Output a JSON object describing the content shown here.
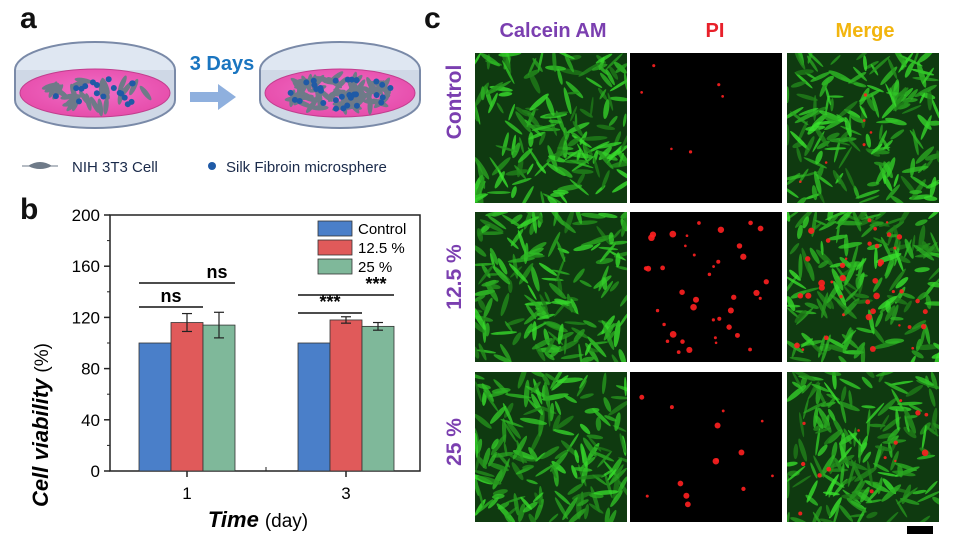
{
  "panel_labels": {
    "a": "a",
    "b": "b",
    "c": "c"
  },
  "panel_a": {
    "arrow_label": "3 Days",
    "legend_cell": "NIH 3T3 Cell",
    "legend_sphere": "Silk Fibroin microsphere"
  },
  "panel_c": {
    "columns": [
      "Calcein AM",
      "PI",
      "Merge"
    ],
    "rows": [
      "Control",
      "12.5 %",
      "25 %"
    ],
    "colors": {
      "calcein": "#7b3fb0",
      "pi": "#e8202a",
      "merge": "#f2b50f",
      "rows": "#7b3fb0"
    }
  },
  "chart_data": {
    "type": "bar",
    "categories": [
      "1",
      "3"
    ],
    "series": [
      {
        "name": "Control",
        "values": [
          100,
          100
        ],
        "errors": [
          0,
          0
        ],
        "color": "#4a7fc9"
      },
      {
        "name": "12.5 %",
        "values": [
          116,
          118
        ],
        "errors": [
          7,
          2.5
        ],
        "color": "#e05a5a"
      },
      {
        "name": "25 %",
        "values": [
          114,
          113
        ],
        "errors": [
          10,
          3
        ],
        "color": "#7fb89a"
      }
    ],
    "xlabel": {
      "bold": "Time",
      "unit": "(day)"
    },
    "ylabel": {
      "bold": "Cell viability",
      "unit": "(%)"
    },
    "ylim": [
      0,
      200
    ],
    "yticks": [
      0,
      40,
      80,
      120,
      160,
      200
    ],
    "legend_position": "top-right",
    "significance": [
      {
        "group": "1",
        "pair": [
          "Control",
          "12.5 %"
        ],
        "label": "ns"
      },
      {
        "group": "1",
        "pair": [
          "Control",
          "25 %"
        ],
        "label": "ns"
      },
      {
        "group": "3",
        "pair": [
          "Control",
          "12.5 %"
        ],
        "label": "***"
      },
      {
        "group": "3",
        "pair": [
          "Control",
          "25 %"
        ],
        "label": "***"
      }
    ]
  }
}
